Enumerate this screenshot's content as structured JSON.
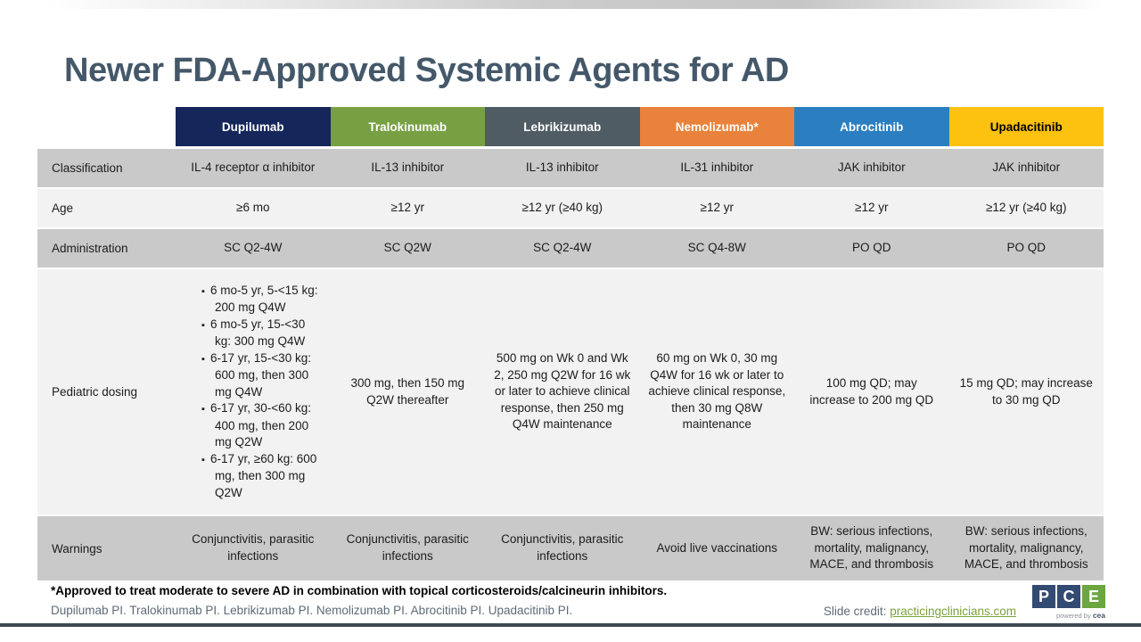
{
  "title": "Newer FDA-Approved Systemic Agents for AD",
  "colors": {
    "title_text": "#44586a",
    "row_shade_dark": "#c9c9c9",
    "row_shade_light": "#f2f2f2",
    "link_green": "#7ca23d",
    "bottom_bar": "#3b4954"
  },
  "table": {
    "columns": [
      {
        "label": "Dupilumab",
        "color": "#15265b",
        "text_color": "#ffffff"
      },
      {
        "label": "Tralokinumab",
        "color": "#77a043",
        "text_color": "#ffffff"
      },
      {
        "label": "Lebrikizumab",
        "color": "#505c64",
        "text_color": "#ffffff"
      },
      {
        "label": "Nemolizumab*",
        "color": "#e8823c",
        "text_color": "#ffffff"
      },
      {
        "label": "Abrocitinib",
        "color": "#2b7fc0",
        "text_color": "#ffffff"
      },
      {
        "label": "Upadacitinib",
        "color": "#fdc110",
        "text_color": "#000000"
      }
    ],
    "rows": [
      {
        "label": "Classification",
        "cells": [
          "IL-4 receptor α inhibitor",
          "IL-13 inhibitor",
          "IL-13 inhibitor",
          "IL-31 inhibitor",
          "JAK inhibitor",
          "JAK inhibitor"
        ]
      },
      {
        "label": "Age",
        "cells": [
          "≥6 mo",
          "≥12 yr",
          "≥12 yr (≥40 kg)",
          "≥12 yr",
          "≥12 yr",
          "≥12 yr (≥40 kg)"
        ]
      },
      {
        "label": "Administration",
        "cells": [
          "SC Q2-4W",
          "SC Q2W",
          "SC Q2-4W",
          "SC Q4-8W",
          "PO QD",
          "PO QD"
        ]
      },
      {
        "label": "Pediatric dosing",
        "cells": [
          {
            "bullets": [
              "6 mo-5 yr, 5-<15 kg: 200 mg Q4W",
              "6 mo-5 yr, 15-<30 kg: 300 mg Q4W",
              "6-17 yr, 15-<30 kg: 600 mg, then 300 mg Q4W",
              "6-17 yr, 30-<60 kg: 400 mg, then 200 mg Q2W",
              "6-17 yr, ≥60 kg: 600 mg, then 300 mg Q2W"
            ]
          },
          "300 mg, then 150 mg Q2W thereafter",
          "500 mg on Wk 0 and Wk 2, 250 mg Q2W for 16 wk or later to achieve clinical response, then 250 mg Q4W maintenance",
          "60 mg on Wk 0, 30 mg Q4W for 16 wk or later to achieve clinical response, then 30 mg Q8W maintenance",
          "100 mg QD; may increase to 200 mg QD",
          "15 mg QD; may increase to 30 mg QD"
        ]
      },
      {
        "label": "Warnings",
        "cells": [
          "Conjunctivitis, parasitic infections",
          "Conjunctivitis, parasitic infections",
          "Conjunctivitis, parasitic infections",
          "Avoid live vaccinations",
          "BW: serious infections, mortality, malignancy, MACE, and thrombosis",
          "BW: serious infections, mortality, malignancy, MACE, and thrombosis"
        ]
      }
    ]
  },
  "footer": {
    "footnote": "*Approved to treat moderate to severe AD in combination with topical corticosteroids/calcineurin inhibitors.",
    "references": "Dupilumab PI. Tralokinumab PI. Lebrikizumab PI. Nemolizumab PI. Abrocitinib PI. Upadacitinib PI.",
    "credit_label": "Slide credit:",
    "credit_link": "practicingclinicians.com"
  },
  "logo": {
    "letters": [
      "P",
      "C",
      "E"
    ],
    "powered_prefix": "powered by",
    "powered_brand": "cea"
  }
}
